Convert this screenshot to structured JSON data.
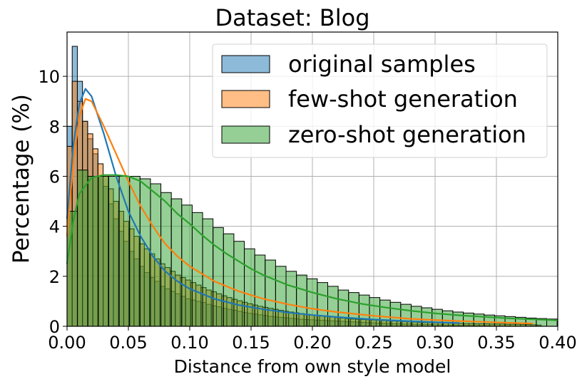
{
  "chart_data": {
    "type": "bar",
    "subtype": "histogram-with-kde",
    "title": "Dataset: Blog",
    "xlabel": "Distance from own style model",
    "ylabel": "Percentage (%)",
    "xlim": [
      0.0,
      0.4
    ],
    "ylim": [
      0,
      11.77
    ],
    "x_ticks": [
      "0.00",
      "0.05",
      "0.10",
      "0.15",
      "0.20",
      "0.25",
      "0.30",
      "0.35",
      "0.40"
    ],
    "y_ticks": [
      "0",
      "2",
      "4",
      "6",
      "8",
      "10"
    ],
    "grid": true,
    "legend_position": "upper right",
    "series": [
      {
        "name": "original samples",
        "color": "#1f77b4",
        "fill": "#7fb0d8",
        "bin_start": 0.0,
        "bin_width": 0.0042,
        "values": [
          8.0,
          11.2,
          9.8,
          8.2,
          7.5,
          6.9,
          6.0,
          5.6,
          4.9,
          4.3,
          3.8,
          3.4,
          3.0,
          2.7,
          2.4,
          2.15,
          1.95,
          1.8,
          1.6,
          1.5,
          1.4,
          1.3,
          1.2,
          1.1,
          1.05,
          1.0,
          0.95,
          0.88,
          0.82,
          0.78,
          0.72,
          0.68,
          0.64,
          0.6,
          0.56,
          0.52,
          0.49,
          0.46,
          0.43,
          0.4,
          0.38,
          0.36,
          0.34,
          0.32,
          0.3,
          0.28,
          0.27,
          0.26,
          0.25,
          0.24,
          0.23,
          0.22,
          0.21,
          0.2,
          0.19,
          0.18,
          0.17,
          0.16,
          0.15,
          0.14,
          0.13,
          0.12,
          0.11,
          0.1,
          0.1,
          0.09,
          0.09,
          0.08,
          0.08,
          0.07,
          0.07,
          0.06,
          0.06,
          0.05,
          0.05,
          0.05,
          0.04,
          0.04,
          0.04,
          0.03,
          0.03,
          0.03,
          0.02,
          0.02,
          0.02,
          0.02,
          0.01,
          0.01,
          0.01,
          0.01,
          0.01,
          0.01,
          0.0,
          0.0,
          0.0
        ],
        "kde": [
          [
            0.0,
            4.3
          ],
          [
            0.005,
            7.2
          ],
          [
            0.01,
            8.9
          ],
          [
            0.015,
            9.5
          ],
          [
            0.02,
            9.2
          ],
          [
            0.03,
            7.7
          ],
          [
            0.04,
            6.0
          ],
          [
            0.05,
            4.6
          ],
          [
            0.06,
            3.6
          ],
          [
            0.07,
            2.8
          ],
          [
            0.08,
            2.2
          ],
          [
            0.09,
            1.8
          ],
          [
            0.1,
            1.5
          ],
          [
            0.12,
            1.1
          ],
          [
            0.14,
            0.85
          ],
          [
            0.16,
            0.68
          ],
          [
            0.18,
            0.55
          ],
          [
            0.2,
            0.45
          ],
          [
            0.22,
            0.37
          ],
          [
            0.25,
            0.27
          ],
          [
            0.28,
            0.2
          ],
          [
            0.3,
            0.16
          ],
          [
            0.32,
            0.13
          ]
        ]
      },
      {
        "name": "few-shot generation",
        "color": "#ff7f0e",
        "fill": "#ffb77c",
        "bin_start": 0.0,
        "bin_width": 0.0042,
        "values": [
          7.2,
          9.8,
          9.0,
          8.2,
          7.7,
          7.1,
          6.5,
          6.0,
          5.5,
          5.0,
          4.6,
          4.2,
          3.9,
          3.6,
          3.3,
          3.1,
          2.9,
          2.7,
          2.5,
          2.35,
          2.2,
          2.05,
          1.95,
          1.85,
          1.75,
          1.65,
          1.55,
          1.45,
          1.38,
          1.3,
          1.22,
          1.15,
          1.08,
          1.02,
          0.96,
          0.9,
          0.85,
          0.8,
          0.76,
          0.72,
          0.68,
          0.64,
          0.6,
          0.57,
          0.54,
          0.51,
          0.48,
          0.45,
          0.43,
          0.41,
          0.39,
          0.37,
          0.35,
          0.33,
          0.31,
          0.29,
          0.28,
          0.27,
          0.26,
          0.25,
          0.24,
          0.23,
          0.22,
          0.21,
          0.2,
          0.19,
          0.18,
          0.17,
          0.16,
          0.15,
          0.15,
          0.14,
          0.14,
          0.13,
          0.13,
          0.12,
          0.12,
          0.11,
          0.11,
          0.1,
          0.1,
          0.1,
          0.09,
          0.09,
          0.09,
          0.08,
          0.08,
          0.08,
          0.07,
          0.07,
          0.06,
          0.05
        ],
        "kde": [
          [
            0.0,
            3.6
          ],
          [
            0.005,
            6.5
          ],
          [
            0.01,
            8.4
          ],
          [
            0.015,
            9.1
          ],
          [
            0.02,
            9.0
          ],
          [
            0.03,
            8.0
          ],
          [
            0.04,
            6.9
          ],
          [
            0.05,
            5.8
          ],
          [
            0.06,
            4.8
          ],
          [
            0.07,
            4.0
          ],
          [
            0.08,
            3.3
          ],
          [
            0.09,
            2.8
          ],
          [
            0.1,
            2.4
          ],
          [
            0.12,
            1.8
          ],
          [
            0.14,
            1.4
          ],
          [
            0.16,
            1.1
          ],
          [
            0.18,
            0.88
          ],
          [
            0.2,
            0.7
          ],
          [
            0.22,
            0.57
          ],
          [
            0.25,
            0.42
          ],
          [
            0.28,
            0.3
          ],
          [
            0.3,
            0.25
          ],
          [
            0.33,
            0.19
          ],
          [
            0.36,
            0.14
          ],
          [
            0.38,
            0.11
          ]
        ]
      },
      {
        "name": "zero-shot generation",
        "color": "#2ca02c",
        "fill": "#96d296",
        "bin_start": 0.0,
        "bin_width": 0.0085,
        "values": [
          4.6,
          6.25,
          6.0,
          6.0,
          6.0,
          6.0,
          6.0,
          5.9,
          5.7,
          5.35,
          5.1,
          4.85,
          4.55,
          4.3,
          3.95,
          3.7,
          3.4,
          3.1,
          2.85,
          2.65,
          2.4,
          2.2,
          2.05,
          1.9,
          1.75,
          1.6,
          1.45,
          1.35,
          1.25,
          1.15,
          1.05,
          0.96,
          0.88,
          0.8,
          0.74,
          0.68,
          0.62,
          0.57,
          0.53,
          0.49,
          0.45,
          0.42,
          0.39,
          0.36,
          0.33,
          0.31,
          0.29
        ],
        "kde": [
          [
            0.0,
            2.5
          ],
          [
            0.005,
            4.2
          ],
          [
            0.01,
            5.3
          ],
          [
            0.02,
            5.95
          ],
          [
            0.03,
            6.05
          ],
          [
            0.04,
            6.05
          ],
          [
            0.05,
            6.0
          ],
          [
            0.06,
            5.8
          ],
          [
            0.07,
            5.4
          ],
          [
            0.08,
            5.0
          ],
          [
            0.09,
            4.5
          ],
          [
            0.1,
            4.1
          ],
          [
            0.11,
            3.65
          ],
          [
            0.12,
            3.25
          ],
          [
            0.13,
            2.9
          ],
          [
            0.14,
            2.6
          ],
          [
            0.15,
            2.3
          ],
          [
            0.16,
            2.05
          ],
          [
            0.18,
            1.65
          ],
          [
            0.2,
            1.35
          ],
          [
            0.22,
            1.1
          ],
          [
            0.24,
            0.9
          ],
          [
            0.26,
            0.75
          ],
          [
            0.28,
            0.62
          ],
          [
            0.3,
            0.52
          ],
          [
            0.32,
            0.44
          ],
          [
            0.34,
            0.38
          ],
          [
            0.36,
            0.32
          ],
          [
            0.38,
            0.28
          ],
          [
            0.4,
            0.24
          ]
        ]
      }
    ]
  }
}
